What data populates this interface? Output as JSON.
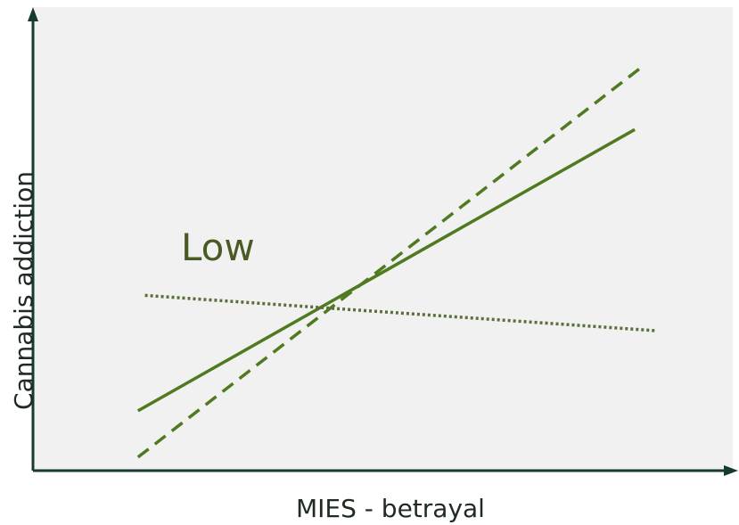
{
  "chart_data": {
    "type": "line",
    "xlabel": "MIES - betrayal",
    "ylabel": "Cannabis addiction",
    "annotation": "Low",
    "xlim": [
      0,
      100
    ],
    "ylim": [
      0,
      100
    ],
    "grid": false,
    "colors": {
      "background": "#f1f1f1",
      "axis": "#163b31",
      "line": "#4f7a1f",
      "dotted_line": "#5a6f3a",
      "annotation": "#4a5a24"
    },
    "series": [
      {
        "style": "solid",
        "x": [
          15,
          86
        ],
        "y": [
          12.9,
          73.6
        ]
      },
      {
        "style": "dashed",
        "x": [
          15,
          87
        ],
        "y": [
          2.9,
          87.1
        ]
      },
      {
        "style": "dotted",
        "x": [
          16,
          89
        ],
        "y": [
          37.8,
          30.2
        ]
      }
    ]
  }
}
